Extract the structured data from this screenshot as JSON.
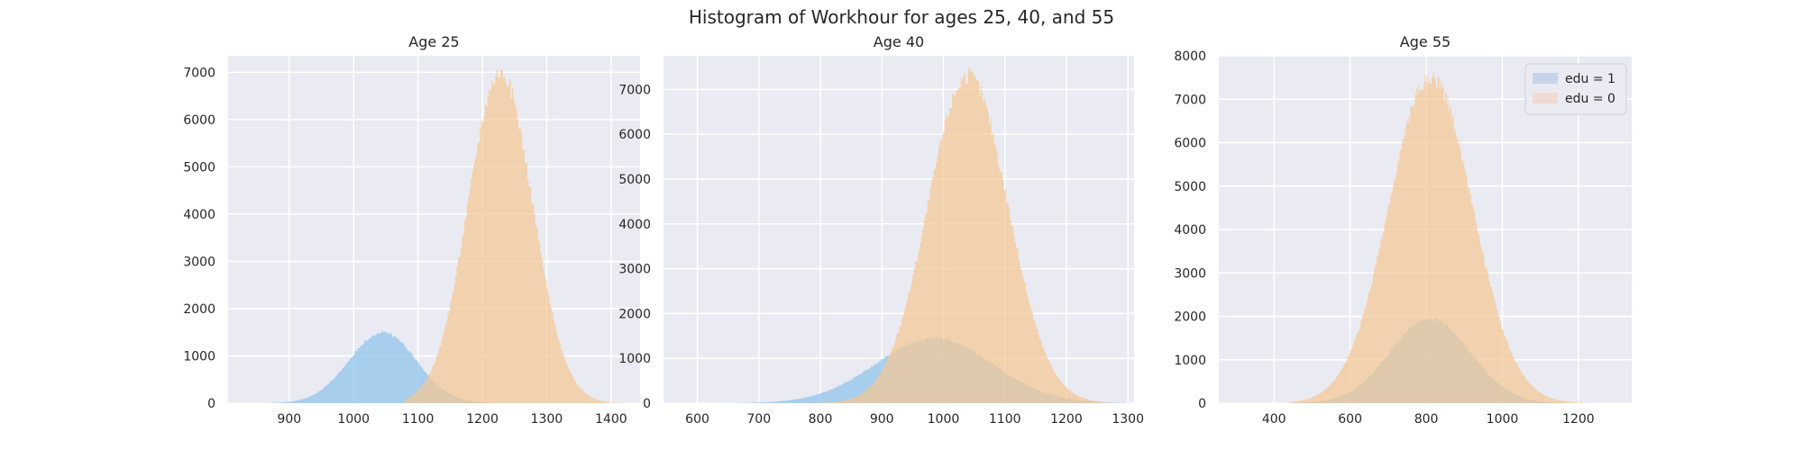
{
  "suptitle": "Histogram of Workhour for ages 25, 40, and 55",
  "colors": {
    "background": "#eaeaf2",
    "grid": "#ffffff",
    "edu1": "#8ec3ea",
    "edu0": "#f5c893",
    "legend_edu1": "#c6d3ea",
    "legend_edu0": "#f0dbd0"
  },
  "chart_data": [
    {
      "type": "histogram",
      "title": "Age 25",
      "xlabel": "",
      "ylabel": "",
      "xlim": [
        805,
        1445
      ],
      "ylim": [
        0,
        7350
      ],
      "xticks": [
        900,
        1000,
        1100,
        1200,
        1300,
        1400
      ],
      "yticks": [
        0,
        1000,
        2000,
        3000,
        4000,
        5000,
        6000,
        7000
      ],
      "grid": true,
      "series": [
        {
          "name": "edu = 1",
          "color_key": "edu1",
          "distribution": "normal",
          "mean": 1045,
          "sd": 52,
          "peak_count": 1500,
          "range": [
            860,
            1240
          ]
        },
        {
          "name": "edu = 0",
          "color_key": "edu0",
          "distribution": "normal",
          "mean": 1228,
          "sd": 50,
          "peak_count": 7000,
          "range": [
            1080,
            1420
          ]
        }
      ]
    },
    {
      "type": "histogram",
      "title": "Age 40",
      "xlabel": "",
      "ylabel": "",
      "xlim": [
        545,
        1310
      ],
      "ylim": [
        0,
        7750
      ],
      "xticks": [
        600,
        700,
        800,
        900,
        1000,
        1100,
        1200,
        1300
      ],
      "yticks": [
        0,
        1000,
        2000,
        3000,
        4000,
        5000,
        6000,
        7000
      ],
      "grid": true,
      "series": [
        {
          "name": "edu = 1",
          "color_key": "edu1",
          "distribution": "normal",
          "mean": 985,
          "sd": 95,
          "peak_count": 1450,
          "range": [
            600,
            1300
          ]
        },
        {
          "name": "edu = 0",
          "color_key": "edu0",
          "distribution": "normal",
          "mean": 1040,
          "sd": 65,
          "peak_count": 7300,
          "range": [
            760,
            1270
          ]
        }
      ]
    },
    {
      "type": "histogram",
      "title": "Age 55",
      "xlabel": "",
      "ylabel": "",
      "xlim": [
        255,
        1340
      ],
      "ylim": [
        0,
        8000
      ],
      "xticks": [
        400,
        600,
        800,
        1000,
        1200
      ],
      "yticks": [
        0,
        1000,
        2000,
        3000,
        4000,
        5000,
        6000,
        7000,
        8000
      ],
      "grid": true,
      "legend": {
        "position": "top-right",
        "entries": [
          "edu = 1",
          "edu = 0"
        ]
      },
      "series": [
        {
          "name": "edu = 1",
          "color_key": "edu1",
          "distribution": "normal",
          "mean": 810,
          "sd": 105,
          "peak_count": 1950,
          "range": [
            450,
            1250
          ]
        },
        {
          "name": "edu = 0",
          "color_key": "edu0",
          "distribution": "normal",
          "mean": 812,
          "sd": 110,
          "peak_count": 7500,
          "range": [
            440,
            1280
          ]
        }
      ]
    }
  ]
}
